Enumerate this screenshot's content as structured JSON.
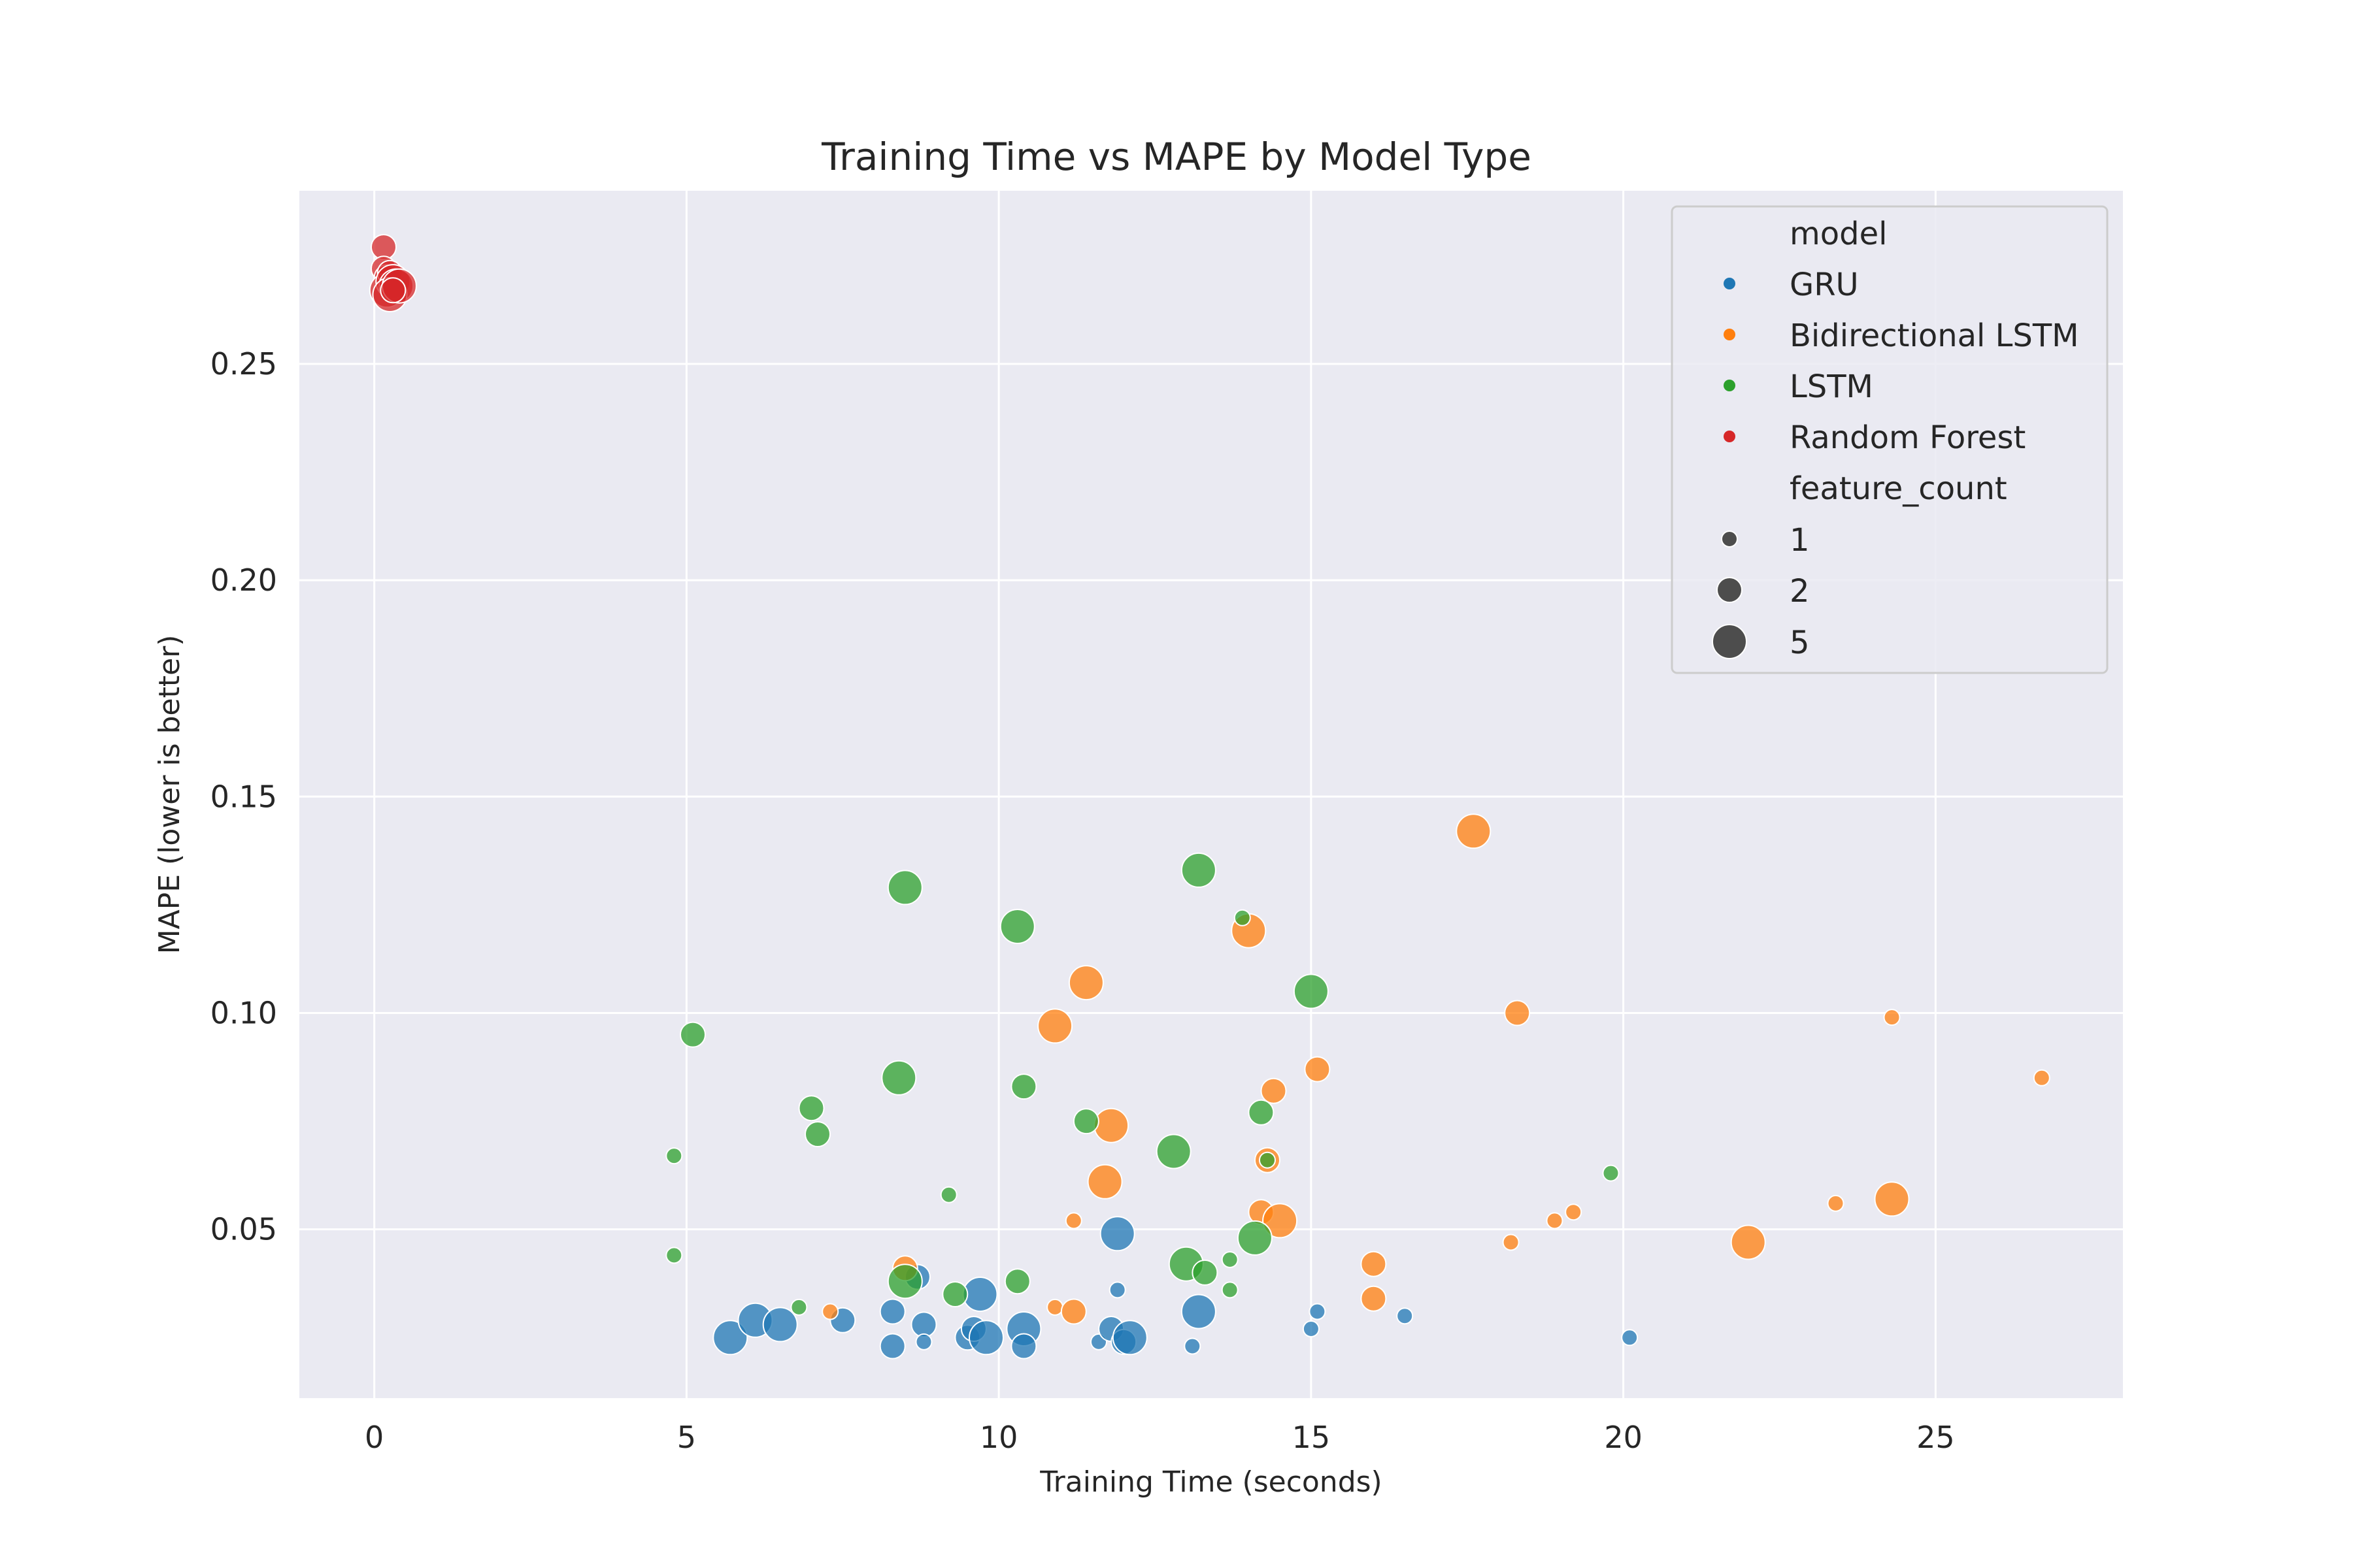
{
  "chart_data": {
    "type": "scatter",
    "title": "Training Time vs MAPE by Model Type",
    "xlabel": "Training Time (seconds)",
    "ylabel": "MAPE (lower is better)",
    "xlim": [
      -1.2,
      28.0
    ],
    "ylim": [
      0.011,
      0.29
    ],
    "xticks": [
      0,
      5,
      10,
      15,
      20,
      25
    ],
    "yticks": [
      0.05,
      0.1,
      0.15,
      0.2,
      0.25
    ],
    "ytick_labels": [
      "0.05",
      "0.10",
      "0.15",
      "0.20",
      "0.25"
    ],
    "grid": true,
    "legend_position": "top-right",
    "legend": {
      "hue_title": "model",
      "size_title": "feature_count",
      "sizes": [
        1,
        2,
        5
      ]
    },
    "series": [
      {
        "name": "GRU",
        "color": "#1f77b4",
        "points": [
          {
            "x": 5.7,
            "y": 0.025,
            "size": 5
          },
          {
            "x": 6.1,
            "y": 0.029,
            "size": 5
          },
          {
            "x": 6.5,
            "y": 0.028,
            "size": 5
          },
          {
            "x": 7.5,
            "y": 0.029,
            "size": 2
          },
          {
            "x": 8.3,
            "y": 0.023,
            "size": 2
          },
          {
            "x": 8.3,
            "y": 0.031,
            "size": 2
          },
          {
            "x": 8.7,
            "y": 0.039,
            "size": 2
          },
          {
            "x": 8.8,
            "y": 0.028,
            "size": 2
          },
          {
            "x": 8.8,
            "y": 0.024,
            "size": 1
          },
          {
            "x": 9.5,
            "y": 0.025,
            "size": 2
          },
          {
            "x": 9.6,
            "y": 0.027,
            "size": 2
          },
          {
            "x": 9.7,
            "y": 0.035,
            "size": 5
          },
          {
            "x": 9.8,
            "y": 0.025,
            "size": 5
          },
          {
            "x": 10.4,
            "y": 0.027,
            "size": 5
          },
          {
            "x": 10.4,
            "y": 0.023,
            "size": 2
          },
          {
            "x": 11.6,
            "y": 0.024,
            "size": 1
          },
          {
            "x": 11.8,
            "y": 0.027,
            "size": 2
          },
          {
            "x": 11.9,
            "y": 0.049,
            "size": 5
          },
          {
            "x": 11.9,
            "y": 0.036,
            "size": 1
          },
          {
            "x": 12.0,
            "y": 0.024,
            "size": 2
          },
          {
            "x": 12.1,
            "y": 0.025,
            "size": 5
          },
          {
            "x": 13.1,
            "y": 0.023,
            "size": 1
          },
          {
            "x": 13.2,
            "y": 0.031,
            "size": 5
          },
          {
            "x": 15.0,
            "y": 0.027,
            "size": 1
          },
          {
            "x": 15.1,
            "y": 0.031,
            "size": 1
          },
          {
            "x": 16.5,
            "y": 0.03,
            "size": 1
          },
          {
            "x": 20.1,
            "y": 0.025,
            "size": 1
          }
        ]
      },
      {
        "name": "Bidirectional LSTM",
        "color": "#ff7f0e",
        "points": [
          {
            "x": 7.3,
            "y": 0.031,
            "size": 1
          },
          {
            "x": 8.5,
            "y": 0.041,
            "size": 2
          },
          {
            "x": 10.9,
            "y": 0.097,
            "size": 5
          },
          {
            "x": 10.9,
            "y": 0.032,
            "size": 1
          },
          {
            "x": 11.2,
            "y": 0.052,
            "size": 1
          },
          {
            "x": 11.2,
            "y": 0.031,
            "size": 2
          },
          {
            "x": 11.4,
            "y": 0.107,
            "size": 5
          },
          {
            "x": 11.7,
            "y": 0.061,
            "size": 5
          },
          {
            "x": 11.8,
            "y": 0.074,
            "size": 5
          },
          {
            "x": 14.0,
            "y": 0.119,
            "size": 5
          },
          {
            "x": 14.2,
            "y": 0.054,
            "size": 2
          },
          {
            "x": 14.3,
            "y": 0.066,
            "size": 2
          },
          {
            "x": 14.4,
            "y": 0.082,
            "size": 2
          },
          {
            "x": 14.5,
            "y": 0.052,
            "size": 5
          },
          {
            "x": 15.1,
            "y": 0.087,
            "size": 2
          },
          {
            "x": 16.0,
            "y": 0.042,
            "size": 2
          },
          {
            "x": 16.0,
            "y": 0.034,
            "size": 2
          },
          {
            "x": 17.6,
            "y": 0.142,
            "size": 5
          },
          {
            "x": 18.2,
            "y": 0.047,
            "size": 1
          },
          {
            "x": 18.3,
            "y": 0.1,
            "size": 2
          },
          {
            "x": 18.9,
            "y": 0.052,
            "size": 1
          },
          {
            "x": 19.2,
            "y": 0.054,
            "size": 1
          },
          {
            "x": 22.0,
            "y": 0.047,
            "size": 5
          },
          {
            "x": 23.4,
            "y": 0.056,
            "size": 1
          },
          {
            "x": 24.3,
            "y": 0.099,
            "size": 1
          },
          {
            "x": 24.3,
            "y": 0.057,
            "size": 5
          },
          {
            "x": 26.7,
            "y": 0.085,
            "size": 1
          }
        ]
      },
      {
        "name": "LSTM",
        "color": "#2ca02c",
        "points": [
          {
            "x": 4.8,
            "y": 0.067,
            "size": 1
          },
          {
            "x": 4.8,
            "y": 0.044,
            "size": 1
          },
          {
            "x": 5.1,
            "y": 0.095,
            "size": 2
          },
          {
            "x": 6.8,
            "y": 0.032,
            "size": 1
          },
          {
            "x": 7.0,
            "y": 0.078,
            "size": 2
          },
          {
            "x": 7.1,
            "y": 0.072,
            "size": 2
          },
          {
            "x": 8.4,
            "y": 0.085,
            "size": 5
          },
          {
            "x": 8.5,
            "y": 0.129,
            "size": 5
          },
          {
            "x": 8.5,
            "y": 0.038,
            "size": 5
          },
          {
            "x": 9.2,
            "y": 0.058,
            "size": 1
          },
          {
            "x": 9.3,
            "y": 0.035,
            "size": 2
          },
          {
            "x": 10.3,
            "y": 0.12,
            "size": 5
          },
          {
            "x": 10.3,
            "y": 0.038,
            "size": 2
          },
          {
            "x": 10.4,
            "y": 0.083,
            "size": 2
          },
          {
            "x": 11.4,
            "y": 0.075,
            "size": 2
          },
          {
            "x": 12.8,
            "y": 0.068,
            "size": 5
          },
          {
            "x": 13.0,
            "y": 0.042,
            "size": 5
          },
          {
            "x": 13.2,
            "y": 0.133,
            "size": 5
          },
          {
            "x": 13.3,
            "y": 0.04,
            "size": 2
          },
          {
            "x": 13.7,
            "y": 0.043,
            "size": 1
          },
          {
            "x": 13.7,
            "y": 0.036,
            "size": 1
          },
          {
            "x": 13.9,
            "y": 0.122,
            "size": 1
          },
          {
            "x": 14.1,
            "y": 0.048,
            "size": 5
          },
          {
            "x": 14.2,
            "y": 0.077,
            "size": 2
          },
          {
            "x": 14.3,
            "y": 0.066,
            "size": 1
          },
          {
            "x": 15.0,
            "y": 0.105,
            "size": 5
          },
          {
            "x": 19.8,
            "y": 0.063,
            "size": 1
          }
        ]
      },
      {
        "name": "Random Forest",
        "color": "#d62728",
        "points": [
          {
            "x": 0.15,
            "y": 0.277,
            "size": 2
          },
          {
            "x": 0.15,
            "y": 0.272,
            "size": 2
          },
          {
            "x": 0.2,
            "y": 0.27,
            "size": 2
          },
          {
            "x": 0.2,
            "y": 0.267,
            "size": 5
          },
          {
            "x": 0.25,
            "y": 0.271,
            "size": 2
          },
          {
            "x": 0.3,
            "y": 0.269,
            "size": 5
          },
          {
            "x": 0.35,
            "y": 0.268,
            "size": 5
          },
          {
            "x": 0.25,
            "y": 0.266,
            "size": 5
          },
          {
            "x": 0.4,
            "y": 0.268,
            "size": 5
          },
          {
            "x": 0.3,
            "y": 0.267,
            "size": 2
          }
        ]
      }
    ]
  }
}
